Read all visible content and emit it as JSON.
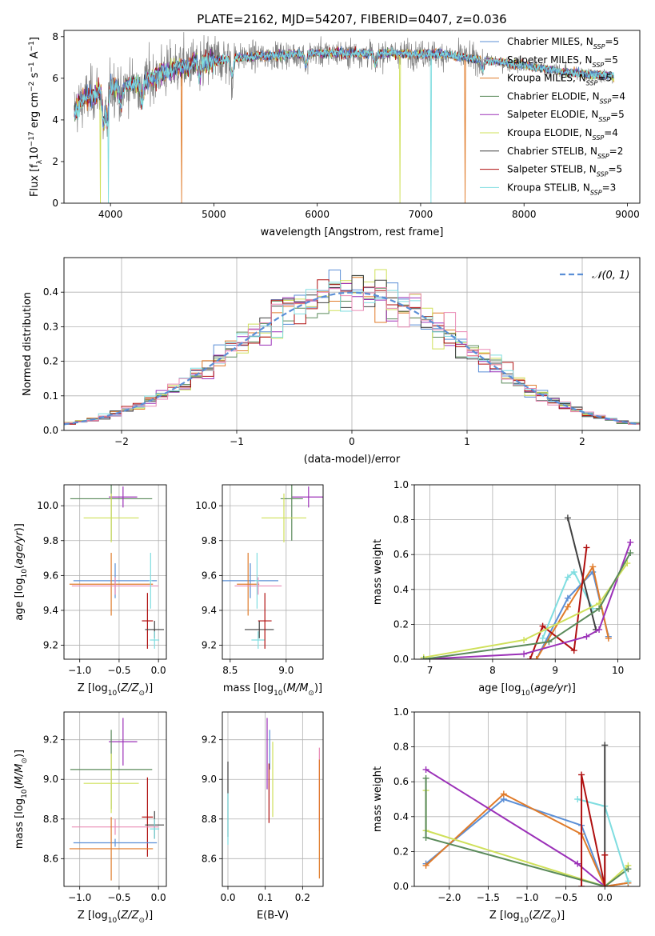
{
  "figure": {
    "title": "PLATE=2162, MJD=54207, FIBERID=0407, z=0.036",
    "colors": {
      "Chabrier MILES": "#5b8fd6",
      "Salpeter MILES": "#b0b0b0",
      "Kroupa MILES": "#e07b2a",
      "Chabrier ELODIE": "#5a8a5a",
      "Salpeter ELODIE": "#9b30b8",
      "Kroupa ELODIE": "#cfe05a",
      "Chabrier STELIB": "#404040",
      "Salpeter STELIB": "#b01010",
      "Kroupa STELIB": "#7fdde0",
      "extra_pink": "#e98ab5",
      "data_gray": "#808080"
    }
  },
  "chart_data": [
    {
      "id": "spectrum",
      "type": "line",
      "xlabel": "wavelength [Angstrom, rest frame]",
      "ylabel_parts": [
        "Flux [f",
        "λ",
        "10",
        "−17",
        " erg cm",
        "−2",
        " s",
        "−1",
        " A",
        "−1",
        "]"
      ],
      "xlim": [
        3550,
        9120
      ],
      "ylim": [
        0,
        8.3
      ],
      "xticks": [
        "4000",
        "5000",
        "6000",
        "7000",
        "8000",
        "9000"
      ],
      "yticks": [
        "0",
        "2",
        "4",
        "6",
        "8"
      ],
      "legend": [
        {
          "name": "Chabrier MILES",
          "sub": "5"
        },
        {
          "name": "Salpeter MILES",
          "sub": "5"
        },
        {
          "name": "Kroupa MILES",
          "sub": "5"
        },
        {
          "name": "Chabrier ELODIE",
          "sub": "4"
        },
        {
          "name": "Salpeter ELODIE",
          "sub": "5"
        },
        {
          "name": "Kroupa ELODIE",
          "sub": "4"
        },
        {
          "name": "Chabrier STELIB",
          "sub": "2"
        },
        {
          "name": "Salpeter STELIB",
          "sub": "5"
        },
        {
          "name": "Kroupa STELIB",
          "sub": "3"
        }
      ],
      "legend_placement": "upper right",
      "wave_range": [
        3650,
        8870
      ],
      "continuum": [
        [
          3650,
          4.5
        ],
        [
          3750,
          5.0
        ],
        [
          3850,
          5.3
        ],
        [
          3950,
          5.6
        ],
        [
          4100,
          5.6
        ],
        [
          4300,
          5.8
        ],
        [
          4500,
          6.3
        ],
        [
          4800,
          6.7
        ],
        [
          5200,
          7.0
        ],
        [
          5600,
          7.1
        ],
        [
          6000,
          7.2
        ],
        [
          6400,
          7.2
        ],
        [
          6800,
          7.2
        ],
        [
          7200,
          7.15
        ],
        [
          7600,
          6.9
        ],
        [
          8000,
          6.6
        ],
        [
          8400,
          6.3
        ],
        [
          8870,
          6.1
        ]
      ]
    },
    {
      "id": "residuals",
      "type": "area",
      "xlabel": "(data-model)/error",
      "ylabel": "Normed distribution",
      "xlim": [
        -2.5,
        2.5
      ],
      "ylim": [
        0,
        0.5
      ],
      "xticks": [
        "−2",
        "−1",
        "0",
        "1",
        "2"
      ],
      "yticks": [
        "0.0",
        "0.1",
        "0.2",
        "0.3",
        "0.4"
      ],
      "bin_width": 0.1,
      "legend": [
        "𝒩(0, 1)"
      ],
      "legend_placement": "upper right",
      "grid": true
    },
    {
      "id": "age_vs_Z",
      "type": "scatter",
      "xlabel": "Z [log10(Z/Z⊙)]",
      "ylabel": "age [log10(age/yr)]",
      "xlim": [
        -1.2,
        0.1
      ],
      "ylim": [
        9.12,
        10.12
      ],
      "xticks": [
        "−1.0",
        "−0.5",
        "0.0"
      ],
      "yticks": [
        "9.2",
        "9.4",
        "9.6",
        "9.8",
        "10.0"
      ],
      "grid": true,
      "points": [
        {
          "c": "Chabrier ELODIE",
          "x": -0.6,
          "y": 10.04,
          "xe": 0.52,
          "ye": 0.24
        },
        {
          "c": "Salpeter ELODIE",
          "x": -0.45,
          "y": 10.05,
          "xe": 0.18,
          "ye": 0.06
        },
        {
          "c": "Kroupa ELODIE",
          "x": -0.6,
          "y": 9.93,
          "xe": 0.35,
          "ye": 0.14
        },
        {
          "c": "Chabrier MILES",
          "x": -0.55,
          "y": 9.57,
          "xe": 0.53,
          "ye": 0.1
        },
        {
          "c": "Kroupa MILES",
          "x": -0.6,
          "y": 9.55,
          "xe": 0.53,
          "ye": 0.18
        },
        {
          "c": "extra_pink",
          "x": -0.55,
          "y": 9.54,
          "xe": 0.55,
          "ye": 0.05
        },
        {
          "c": "Salpeter STELIB",
          "x": -0.14,
          "y": 9.34,
          "xe": 0.07,
          "ye": 0.16
        },
        {
          "c": "Chabrier STELIB",
          "x": -0.05,
          "y": 9.29,
          "xe": 0.12,
          "ye": 0.05
        },
        {
          "c": "Kroupa STELIB",
          "x": -0.05,
          "y": 9.23,
          "xe": 0.06,
          "ye": 0.05
        },
        {
          "c": "Kroupa STELIB",
          "x": -0.1,
          "y": 9.57,
          "xe": 0.02,
          "ye": 0.16
        }
      ]
    },
    {
      "id": "age_vs_mass",
      "type": "scatter",
      "xlabel": "mass [log10(M/M⊙)]",
      "ylabel": "",
      "xlim": [
        8.43,
        9.33
      ],
      "ylim": [
        9.12,
        10.12
      ],
      "xticks": [
        "8.5",
        "9.0"
      ],
      "yticks": [
        "9.2",
        "9.4",
        "9.6",
        "9.8",
        "10.0"
      ],
      "grid": true,
      "points": [
        {
          "c": "Salpeter ELODIE",
          "x": 9.2,
          "y": 10.05,
          "xe": 0.15,
          "ye": 0.06
        },
        {
          "c": "Chabrier ELODIE",
          "x": 9.05,
          "y": 10.04,
          "xe": 0.1,
          "ye": 0.24
        },
        {
          "c": "Kroupa ELODIE",
          "x": 8.98,
          "y": 9.93,
          "xe": 0.2,
          "ye": 0.14
        },
        {
          "c": "Chabrier MILES",
          "x": 8.68,
          "y": 9.57,
          "xe": 0.25,
          "ye": 0.1
        },
        {
          "c": "Kroupa MILES",
          "x": 8.66,
          "y": 9.55,
          "xe": 0.1,
          "ye": 0.18
        },
        {
          "c": "extra_pink",
          "x": 8.75,
          "y": 9.54,
          "xe": 0.21,
          "ye": 0.05
        },
        {
          "c": "Chabrier STELIB",
          "x": 8.76,
          "y": 9.29,
          "xe": 0.13,
          "ye": 0.05
        },
        {
          "c": "Kroupa STELIB",
          "x": 8.75,
          "y": 9.23,
          "xe": 0.06,
          "ye": 0.05
        },
        {
          "c": "Salpeter STELIB",
          "x": 8.81,
          "y": 9.34,
          "xe": 0.06,
          "ye": 0.16
        },
        {
          "c": "Kroupa STELIB",
          "x": 8.74,
          "y": 9.57,
          "xe": 0.02,
          "ye": 0.16
        }
      ]
    },
    {
      "id": "weight_vs_age",
      "type": "line",
      "xlabel": "age [log10(age/yr)]",
      "ylabel": "mass weight",
      "xlim": [
        6.75,
        10.35
      ],
      "ylim": [
        0,
        1
      ],
      "xticks": [
        "7",
        "8",
        "9",
        "10"
      ],
      "yticks": [
        "0.0",
        "0.2",
        "0.4",
        "0.6",
        "0.8",
        "1.0"
      ],
      "grid": true,
      "series": [
        {
          "c": "Kroupa STELIB",
          "x": [
            8.8,
            9.2,
            9.3,
            9.6
          ],
          "y": [
            0.12,
            0.47,
            0.5,
            0.29
          ]
        },
        {
          "c": "Chabrier MILES",
          "x": [
            8.7,
            9.2,
            9.6,
            9.85
          ],
          "y": [
            0.0,
            0.35,
            0.5,
            0.13
          ]
        },
        {
          "c": "Kroupa MILES",
          "x": [
            8.7,
            9.2,
            9.6,
            9.85
          ],
          "y": [
            0.0,
            0.3,
            0.53,
            0.12
          ]
        },
        {
          "c": "Chabrier STELIB",
          "x": [
            9.2,
            9.65
          ],
          "y": [
            0.81,
            0.17
          ]
        },
        {
          "c": "Salpeter STELIB",
          "x": [
            8.6,
            8.8,
            9.3,
            9.5
          ],
          "y": [
            0.0,
            0.19,
            0.05,
            0.64
          ]
        },
        {
          "c": "Salpeter ELODIE",
          "x": [
            6.9,
            8.5,
            9.5,
            9.7,
            10.2
          ],
          "y": [
            0.0,
            0.03,
            0.13,
            0.17,
            0.67
          ]
        },
        {
          "c": "Kroupa ELODIE",
          "x": [
            6.9,
            8.5,
            9.7,
            10.15
          ],
          "y": [
            0.01,
            0.11,
            0.32,
            0.55
          ]
        },
        {
          "c": "Chabrier ELODIE",
          "x": [
            6.9,
            8.9,
            9.7,
            10.2
          ],
          "y": [
            0.0,
            0.1,
            0.29,
            0.61
          ]
        }
      ]
    },
    {
      "id": "mass_vs_Z",
      "type": "scatter",
      "xlabel": "Z [log10(Z/Z⊙)]",
      "ylabel": "mass [log10(M/M⊙)]",
      "xlim": [
        -1.2,
        0.1
      ],
      "ylim": [
        8.46,
        9.34
      ],
      "xticks": [
        "−1.0",
        "−0.5",
        "0.0"
      ],
      "yticks": [
        "8.6",
        "8.8",
        "9.0",
        "9.2"
      ],
      "grid": true,
      "points": [
        {
          "c": "Salpeter ELODIE",
          "x": -0.45,
          "y": 9.19,
          "xe": 0.18,
          "ye": 0.12
        },
        {
          "c": "Chabrier ELODIE",
          "x": -0.6,
          "y": 9.05,
          "xe": 0.52,
          "ye": 0.2
        },
        {
          "c": "Kroupa ELODIE",
          "x": -0.6,
          "y": 8.98,
          "xe": 0.35,
          "ye": 0.15
        },
        {
          "c": "Salpeter STELIB",
          "x": -0.14,
          "y": 8.81,
          "xe": 0.07,
          "ye": 0.2
        },
        {
          "c": "Chabrier STELIB",
          "x": -0.05,
          "y": 8.77,
          "xe": 0.12,
          "ye": 0.07
        },
        {
          "c": "Kroupa STELIB",
          "x": -0.05,
          "y": 8.75,
          "xe": 0.06,
          "ye": 0.05
        },
        {
          "c": "extra_pink",
          "x": -0.55,
          "y": 8.76,
          "xe": 0.55,
          "ye": 0.04
        },
        {
          "c": "Chabrier MILES",
          "x": -0.55,
          "y": 8.68,
          "xe": 0.53,
          "ye": 0.02
        },
        {
          "c": "Kroupa MILES",
          "x": -0.6,
          "y": 8.65,
          "xe": 0.53,
          "ye": 0.16
        }
      ]
    },
    {
      "id": "mass_vs_ebv",
      "type": "scatter",
      "xlabel": "E(B-V)",
      "ylabel": "",
      "xlim": [
        -0.015,
        0.255
      ],
      "ylim": [
        8.46,
        9.34
      ],
      "xticks": [
        "0.0",
        "0.1",
        "0.2"
      ],
      "yticks": [
        "8.6",
        "8.8",
        "9.0",
        "9.2"
      ],
      "grid": true,
      "points": [
        {
          "c": "Chabrier STELIB",
          "x": 0.0,
          "y": 8.9,
          "xe": 0,
          "ye": 0.19
        },
        {
          "c": "Kroupa STELIB",
          "x": 0.0,
          "y": 8.8,
          "xe": 0,
          "ye": 0.13
        },
        {
          "c": "Salpeter ELODIE",
          "x": 0.105,
          "y": 9.13,
          "xe": 0,
          "ye": 0.18
        },
        {
          "c": "Chabrier MILES",
          "x": 0.112,
          "y": 9.15,
          "xe": 0,
          "ye": 0.1
        },
        {
          "c": "Salpeter STELIB",
          "x": 0.11,
          "y": 8.93,
          "xe": 0,
          "ye": 0.15
        },
        {
          "c": "Kroupa ELODIE",
          "x": 0.12,
          "y": 9.0,
          "xe": 0,
          "ye": 0.19
        },
        {
          "c": "extra_pink",
          "x": 0.245,
          "y": 8.95,
          "xe": 0,
          "ye": 0.21
        },
        {
          "c": "Kroupa MILES",
          "x": 0.245,
          "y": 8.8,
          "xe": 0,
          "ye": 0.3
        }
      ]
    },
    {
      "id": "weight_vs_Z",
      "type": "line",
      "xlabel": "Z [log10(Z/Z⊙)]",
      "ylabel": "mass weight",
      "xlim": [
        -2.45,
        0.45
      ],
      "ylim": [
        0,
        1
      ],
      "xticks": [
        "−2.0",
        "−1.5",
        "−1.0",
        "−0.5",
        "0.0"
      ],
      "yticks": [
        "0.0",
        "0.2",
        "0.4",
        "0.6",
        "0.8",
        "1.0"
      ],
      "grid": true,
      "series": [
        {
          "c": "Chabrier MILES",
          "x": [
            -2.3,
            -1.3,
            -0.3,
            0.0,
            0.3
          ],
          "y": [
            0.13,
            0.5,
            0.35,
            0.0,
            0.02
          ]
        },
        {
          "c": "Kroupa MILES",
          "x": [
            -2.3,
            -1.3,
            -0.3,
            0.0,
            0.3
          ],
          "y": [
            0.12,
            0.53,
            0.3,
            0.0,
            0.02
          ]
        },
        {
          "c": "Salpeter ELODIE",
          "x": [
            -2.3,
            -0.35,
            0.0
          ],
          "y": [
            0.67,
            0.13,
            0.0
          ]
        },
        {
          "c": "Kroupa ELODIE",
          "x": [
            -2.3,
            -2.3,
            0.0,
            0.3
          ],
          "y": [
            0.55,
            0.32,
            0.0,
            0.12
          ]
        },
        {
          "c": "Chabrier ELODIE",
          "x": [
            -2.3,
            -2.3,
            0.0,
            0.3
          ],
          "y": [
            0.62,
            0.28,
            0.0,
            0.1
          ]
        },
        {
          "c": "Kroupa STELIB",
          "x": [
            -0.35,
            0.0,
            0.3
          ],
          "y": [
            0.5,
            0.46,
            0.03
          ]
        },
        {
          "c": "Chabrier STELIB",
          "x": [
            0.0,
            0.0
          ],
          "y": [
            0.0,
            0.81
          ]
        },
        {
          "c": "Salpeter STELIB",
          "x": [
            -0.3,
            -0.3,
            0.0,
            0.0
          ],
          "y": [
            0.0,
            0.64,
            0.0,
            0.18
          ]
        }
      ]
    }
  ]
}
